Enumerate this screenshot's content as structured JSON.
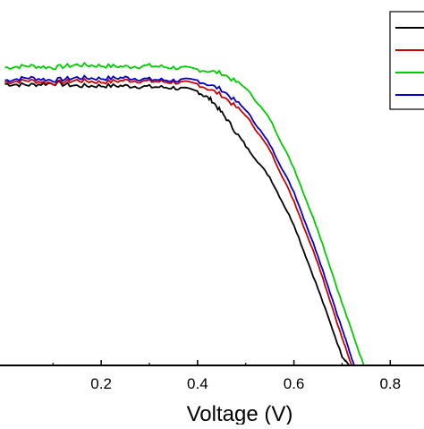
{
  "chart_data": {
    "type": "line",
    "title": "",
    "xlabel": "Voltage (V)",
    "ylabel": "",
    "xlim": [
      -0.01,
      0.87
    ],
    "ylim": [
      0,
      20
    ],
    "x_ticks": [
      0.2,
      0.4,
      0.6,
      0.8
    ],
    "x_tick_labels": [
      "0.2",
      "0.4",
      "0.6",
      "0.8"
    ],
    "grid": false,
    "legend_placement": "top-right",
    "series": [
      {
        "color": "#000000",
        "x": [
          0.0,
          0.05,
          0.1,
          0.15,
          0.2,
          0.25,
          0.3,
          0.35,
          0.4,
          0.43,
          0.46,
          0.5,
          0.55,
          0.6,
          0.65,
          0.7,
          0.715
        ],
        "y": [
          15.4,
          15.35,
          15.45,
          15.3,
          15.3,
          15.3,
          15.25,
          15.2,
          15.0,
          14.5,
          13.5,
          12.0,
          10.3,
          7.7,
          4.2,
          0.5,
          0.0
        ]
      },
      {
        "color": "#cc0000",
        "x": [
          0.0,
          0.05,
          0.1,
          0.15,
          0.2,
          0.25,
          0.3,
          0.35,
          0.4,
          0.45,
          0.5,
          0.55,
          0.6,
          0.65,
          0.7,
          0.72
        ],
        "y": [
          15.5,
          15.6,
          15.45,
          15.6,
          15.5,
          15.6,
          15.55,
          15.5,
          15.4,
          14.8,
          13.7,
          11.8,
          9.0,
          5.6,
          1.5,
          0.0
        ]
      },
      {
        "color": "#00cc00",
        "x": [
          0.0,
          0.05,
          0.1,
          0.15,
          0.2,
          0.25,
          0.3,
          0.35,
          0.4,
          0.45,
          0.5,
          0.55,
          0.6,
          0.65,
          0.7,
          0.745
        ],
        "y": [
          16.3,
          16.4,
          16.3,
          16.45,
          16.4,
          16.35,
          16.4,
          16.3,
          16.2,
          16.0,
          15.2,
          13.5,
          10.8,
          7.4,
          3.4,
          0.0
        ]
      },
      {
        "color": "#0000cc",
        "x": [
          0.0,
          0.05,
          0.1,
          0.15,
          0.2,
          0.25,
          0.3,
          0.35,
          0.4,
          0.45,
          0.5,
          0.55,
          0.6,
          0.65,
          0.7,
          0.725
        ],
        "y": [
          15.6,
          15.75,
          15.6,
          15.75,
          15.7,
          15.75,
          15.65,
          15.6,
          15.6,
          15.1,
          14.0,
          12.1,
          9.5,
          6.0,
          2.0,
          0.0
        ]
      }
    ],
    "legend_colors": [
      "#000000",
      "#cc0000",
      "#00cc00",
      "#0000cc"
    ]
  }
}
